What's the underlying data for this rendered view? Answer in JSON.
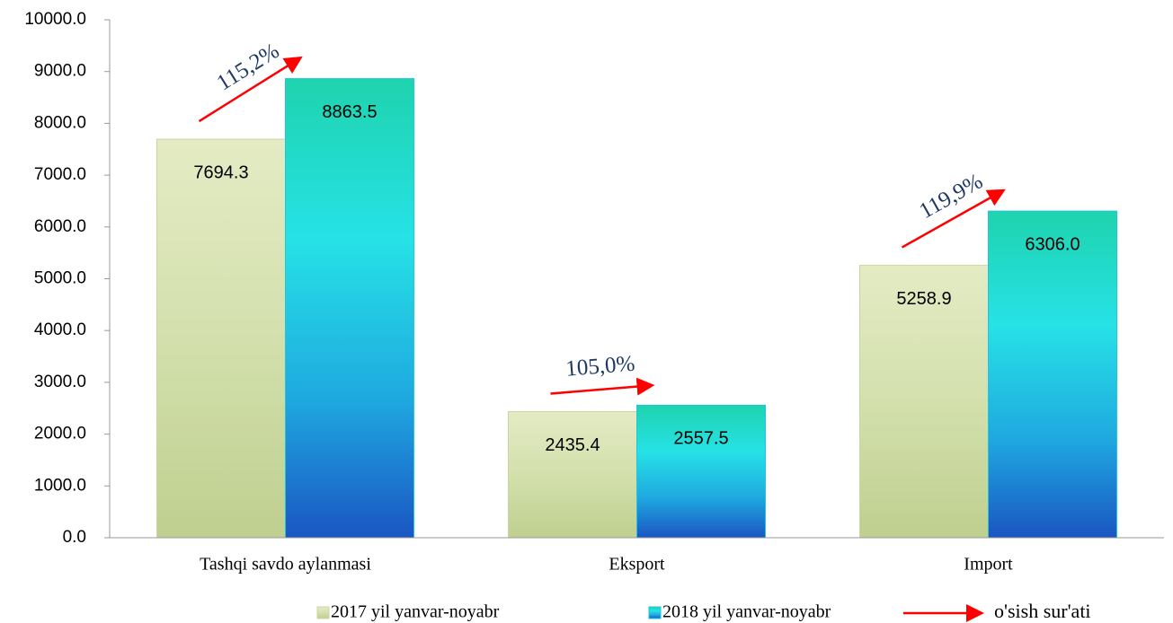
{
  "chart_data": {
    "type": "bar",
    "categories": [
      "Tashqi savdo aylanmasi",
      "Eksport",
      "Import"
    ],
    "series": [
      {
        "name": "2017 yil yanvar-noyabr",
        "color": "#c9d79f",
        "values": [
          7694.3,
          2435.4,
          5258.9
        ],
        "value_labels": [
          "7694.3",
          "2435.4",
          "5258.9"
        ]
      },
      {
        "name": "2018 yil yanvar-noyabr",
        "color": "#1fc6e0",
        "values": [
          8863.5,
          2557.5,
          6306.0
        ],
        "value_labels": [
          "8863.5",
          "2557.5",
          "6306.0"
        ]
      }
    ],
    "growth_labels": [
      "115,2%",
      "105,0%",
      "119,9%"
    ],
    "growth_legend": "o'sish sur'ati",
    "growth_color": "#ff0000",
    "ylim": [
      0,
      10000
    ],
    "yticks": [
      {
        "value": 0,
        "label": "0.0"
      },
      {
        "value": 1000,
        "label": "1000.0"
      },
      {
        "value": 2000,
        "label": "2000.0"
      },
      {
        "value": 3000,
        "label": "3000.0"
      },
      {
        "value": 4000,
        "label": "4000.0"
      },
      {
        "value": 5000,
        "label": "5000.0"
      },
      {
        "value": 6000,
        "label": "6000.0"
      },
      {
        "value": 7000,
        "label": "7000.0"
      },
      {
        "value": 8000,
        "label": "8000.0"
      },
      {
        "value": 9000,
        "label": "9000.0"
      },
      {
        "value": 10000,
        "label": "10000.0"
      }
    ],
    "grid": false
  }
}
